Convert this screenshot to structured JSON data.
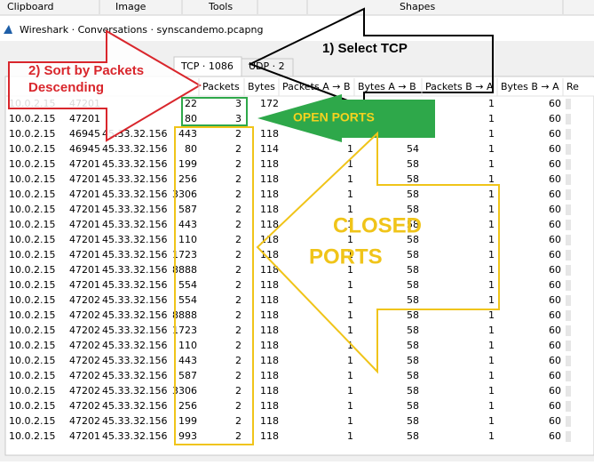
{
  "ribbon": [
    "Clipboard",
    "Image",
    "Tools",
    "Shapes"
  ],
  "window_title": "Wireshark · Conversations · synscandemo.pcapng",
  "tabs": [
    "TCP · 1086",
    "UDP · 2"
  ],
  "columns": [
    "Packets",
    "Bytes",
    "Packets A → B",
    "Bytes A → B",
    "Packets B → A",
    "Bytes B → A",
    "Re"
  ],
  "rows": [
    [
      "10.0.2.15",
      "47201",
      null,
      "22",
      "3",
      "172",
      null,
      null,
      "1",
      "60"
    ],
    [
      "10.0.2.15",
      "47201",
      null,
      "80",
      "3",
      null,
      null,
      null,
      "1",
      "60"
    ],
    [
      "10.0.2.15",
      "46945",
      "45.33.32.156",
      "443",
      "2",
      "118",
      null,
      null,
      "1",
      "60"
    ],
    [
      "10.0.2.15",
      "46945",
      "45.33.32.156",
      "80",
      "2",
      "114",
      "1",
      "54",
      "1",
      "60"
    ],
    [
      "10.0.2.15",
      "47201",
      "45.33.32.156",
      "199",
      "2",
      "118",
      "1",
      "58",
      "1",
      "60"
    ],
    [
      "10.0.2.15",
      "47201",
      "45.33.32.156",
      "256",
      "2",
      "118",
      "1",
      "58",
      "1",
      "60"
    ],
    [
      "10.0.2.15",
      "47201",
      "45.33.32.156",
      "3306",
      "2",
      "118",
      "1",
      "58",
      "1",
      "60"
    ],
    [
      "10.0.2.15",
      "47201",
      "45.33.32.156",
      "587",
      "2",
      "118",
      "1",
      "58",
      "1",
      "60"
    ],
    [
      "10.0.2.15",
      "47201",
      "45.33.32.156",
      "443",
      "2",
      "118",
      "1",
      "58",
      "1",
      "60"
    ],
    [
      "10.0.2.15",
      "47201",
      "45.33.32.156",
      "110",
      "2",
      "118",
      "1",
      "58",
      "1",
      "60"
    ],
    [
      "10.0.2.15",
      "47201",
      "45.33.32.156",
      "1723",
      "2",
      "118",
      "1",
      "58",
      "1",
      "60"
    ],
    [
      "10.0.2.15",
      "47201",
      "45.33.32.156",
      "8888",
      "2",
      "118",
      "1",
      "58",
      "1",
      "60"
    ],
    [
      "10.0.2.15",
      "47201",
      "45.33.32.156",
      "554",
      "2",
      "118",
      "1",
      "58",
      "1",
      "60"
    ],
    [
      "10.0.2.15",
      "47202",
      "45.33.32.156",
      "554",
      "2",
      "118",
      "1",
      "58",
      "1",
      "60"
    ],
    [
      "10.0.2.15",
      "47202",
      "45.33.32.156",
      "8888",
      "2",
      "118",
      "1",
      "58",
      "1",
      "60"
    ],
    [
      "10.0.2.15",
      "47202",
      "45.33.32.156",
      "1723",
      "2",
      "118",
      "1",
      "58",
      "1",
      "60"
    ],
    [
      "10.0.2.15",
      "47202",
      "45.33.32.156",
      "110",
      "2",
      "118",
      "1",
      "58",
      "1",
      "60"
    ],
    [
      "10.0.2.15",
      "47202",
      "45.33.32.156",
      "443",
      "2",
      "118",
      "1",
      "58",
      "1",
      "60"
    ],
    [
      "10.0.2.15",
      "47202",
      "45.33.32.156",
      "587",
      "2",
      "118",
      "1",
      "58",
      "1",
      "60"
    ],
    [
      "10.0.2.15",
      "47202",
      "45.33.32.156",
      "3306",
      "2",
      "118",
      "1",
      "58",
      "1",
      "60"
    ],
    [
      "10.0.2.15",
      "47202",
      "45.33.32.156",
      "256",
      "2",
      "118",
      "1",
      "58",
      "1",
      "60"
    ],
    [
      "10.0.2.15",
      "47202",
      "45.33.32.156",
      "199",
      "2",
      "118",
      "1",
      "58",
      "1",
      "60"
    ],
    [
      "10.0.2.15",
      "47201",
      "45.33.32.156",
      "993",
      "2",
      "118",
      "1",
      "58",
      "1",
      "60"
    ]
  ],
  "annotations": {
    "select_tcp": "1) Select TCP",
    "sort": [
      "2) Sort by Packets",
      "Descending"
    ],
    "open_ports": "OPEN PORTS",
    "closed_ports": [
      "CLOSED",
      "PORTS"
    ]
  }
}
